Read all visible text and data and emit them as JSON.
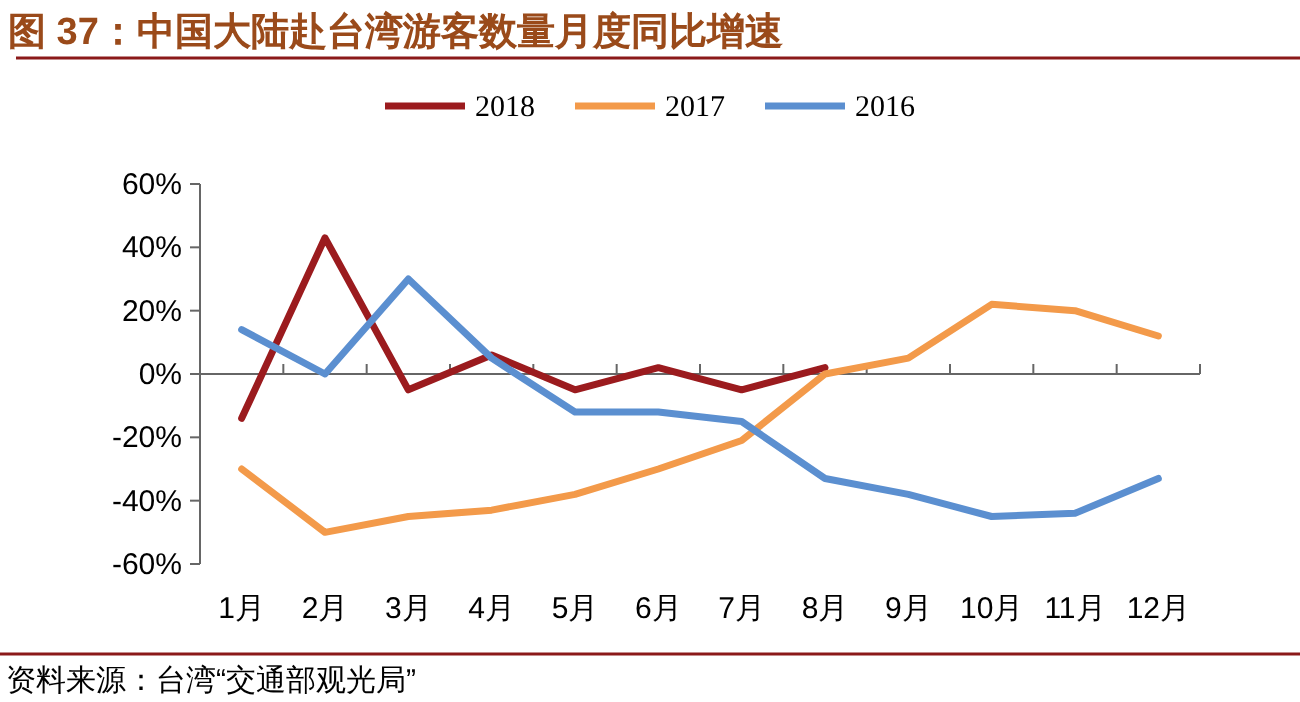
{
  "chart_data": {
    "type": "line",
    "title": "图 37：中国大陆赴台湾游客数量月度同比增速",
    "categories": [
      "1月",
      "2月",
      "3月",
      "4月",
      "5月",
      "6月",
      "7月",
      "8月",
      "9月",
      "10月",
      "11月",
      "12月"
    ],
    "series": [
      {
        "name": "2018",
        "color": "#9b1b1e",
        "values": [
          -14,
          43,
          -5,
          6,
          -5,
          2,
          -5,
          2,
          null,
          null,
          null,
          null
        ]
      },
      {
        "name": "2017",
        "color": "#f39a4a",
        "values": [
          -30,
          -50,
          -45,
          -43,
          -38,
          -30,
          -21,
          0,
          5,
          22,
          20,
          12
        ]
      },
      {
        "name": "2016",
        "color": "#5b8fd0",
        "values": [
          14,
          0,
          30,
          5,
          -12,
          -12,
          -15,
          -33,
          -38,
          -45,
          -44,
          -33
        ]
      }
    ],
    "ylim": [
      -60,
      60
    ],
    "yticks": [
      {
        "value": -60,
        "label": "-60%"
      },
      {
        "value": -40,
        "label": "-40%"
      },
      {
        "value": -20,
        "label": "-20%"
      },
      {
        "value": 0,
        "label": "0%"
      },
      {
        "value": 20,
        "label": "20%"
      },
      {
        "value": 40,
        "label": "40%"
      },
      {
        "value": 60,
        "label": "60%"
      }
    ],
    "legend": "top",
    "annotations": [
      "资料来源：台湾“交通部观光局”"
    ]
  }
}
